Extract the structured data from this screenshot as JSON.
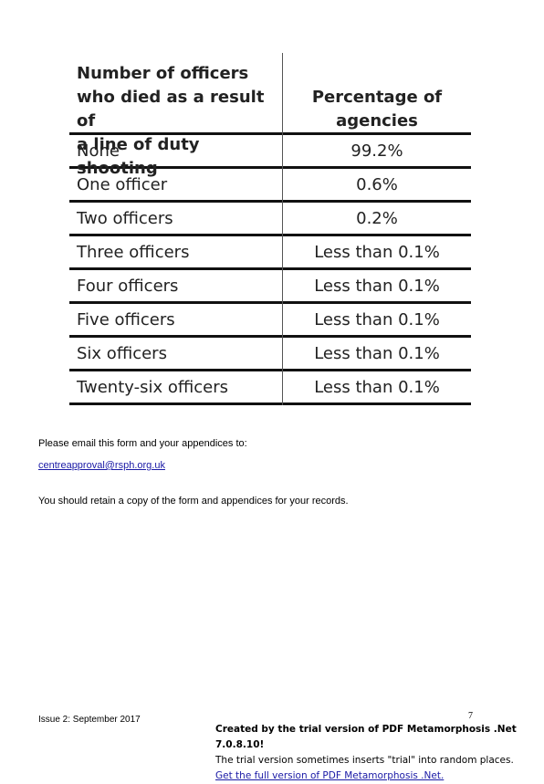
{
  "table": {
    "header_col1": [
      "Number of officers",
      "who died as a result of",
      "a line of duty shooting"
    ],
    "header_col2": [
      "Percentage of",
      "agencies"
    ],
    "rows": [
      {
        "label": "None",
        "value": "99.2%"
      },
      {
        "label": "One officer",
        "value": "0.6%"
      },
      {
        "label": "Two officers",
        "value": "0.2%"
      },
      {
        "label": "Three officers",
        "value": "Less than 0.1%"
      },
      {
        "label": "Four officers",
        "value": "Less than 0.1%"
      },
      {
        "label": "Five officers",
        "value": "Less than 0.1%"
      },
      {
        "label": "Six officers",
        "value": "Less than 0.1%"
      },
      {
        "label": "Twenty-six officers",
        "value": "Less than 0.1%"
      }
    ]
  },
  "body": {
    "instruction": "Please email this form and your appendices to:",
    "email": "centreapproval@rsph.org.uk",
    "retain_note": "You should retain a copy of the form and appendices for your records."
  },
  "footer": {
    "issue": "Issue 2: September 2017",
    "page_number": "7",
    "trial_line1": "Created by the trial version of PDF Metamorphosis .Net 7.0.8.10!",
    "trial_line2": "The trial version sometimes inserts \"trial\" into random places.",
    "trial_line3": "Get the full version of PDF Metamorphosis .Net."
  }
}
